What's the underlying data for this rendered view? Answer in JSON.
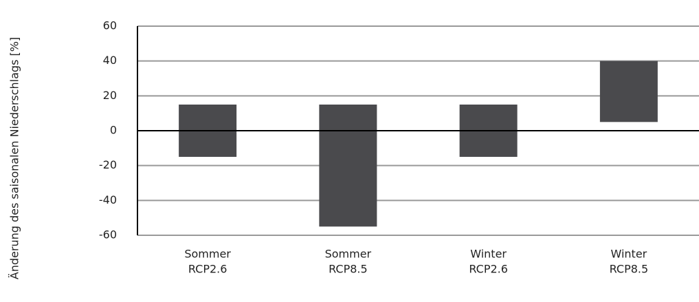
{
  "chart_data": {
    "type": "range-bar",
    "y_label": "Änderung des saisonalen Niederschlags [%]",
    "categories": [
      [
        "Sommer",
        "RCP2.6"
      ],
      [
        "Sommer",
        "RCP8.5"
      ],
      [
        "Winter",
        "RCP2.6"
      ],
      [
        "Winter",
        "RCP8.5"
      ]
    ],
    "low": [
      -15,
      -55,
      -15,
      5
    ],
    "high": [
      15,
      15,
      15,
      40
    ],
    "color": "#4a4a4d",
    "ylim": [
      -60,
      60
    ],
    "yticks": [
      -60,
      -40,
      -20,
      0,
      20,
      40,
      60
    ],
    "grid": true
  }
}
